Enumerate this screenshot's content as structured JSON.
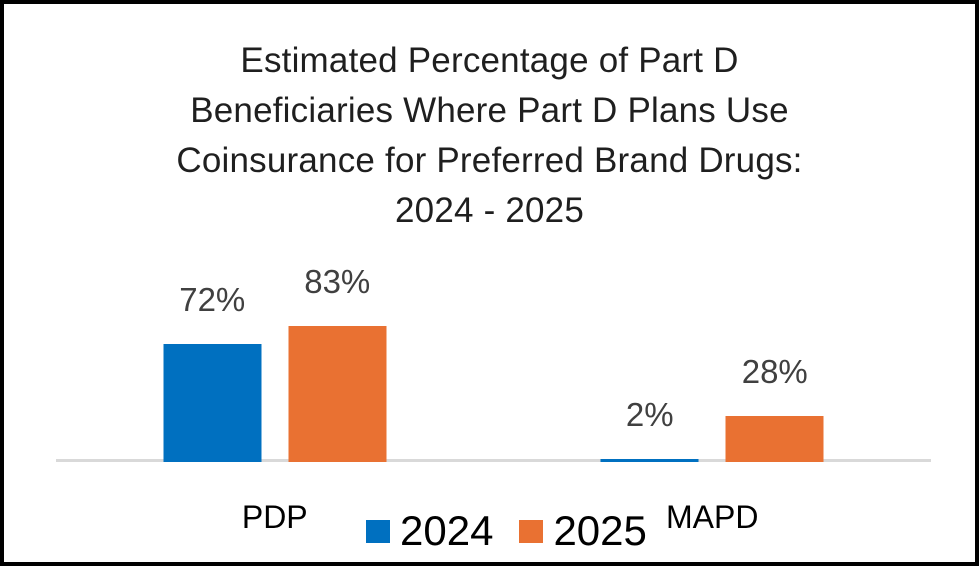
{
  "chart_data": {
    "type": "bar",
    "title": "Estimated Percentage of Part D Beneficiaries Where Part D Plans Use Coinsurance for Preferred Brand Drugs: 2024 - 2025",
    "title_lines": [
      "Estimated Percentage of Part D",
      "Beneficiaries Where Part D Plans Use",
      "Coinsurance for Preferred Brand Drugs:",
      "2024 - 2025"
    ],
    "categories": [
      "PDP",
      "MAPD"
    ],
    "series": [
      {
        "name": "2024",
        "color": "#0070C0",
        "values": [
          72,
          2
        ],
        "labels": [
          "72%",
          "2%"
        ]
      },
      {
        "name": "2025",
        "color": "#E97132",
        "values": [
          83,
          28
        ],
        "labels": [
          "83%",
          "28%"
        ]
      }
    ],
    "xlabel": "",
    "ylabel": "",
    "ylim": [
      0,
      100
    ],
    "value_suffix": "%",
    "grid": false,
    "legend_position": "bottom",
    "colors": {
      "axis_line": "#D9D9D9",
      "data_label": "#404040",
      "axis_text": "#000000",
      "title_text": "#1F1F1F",
      "background": "#FFFFFF",
      "border": "#000000"
    }
  }
}
